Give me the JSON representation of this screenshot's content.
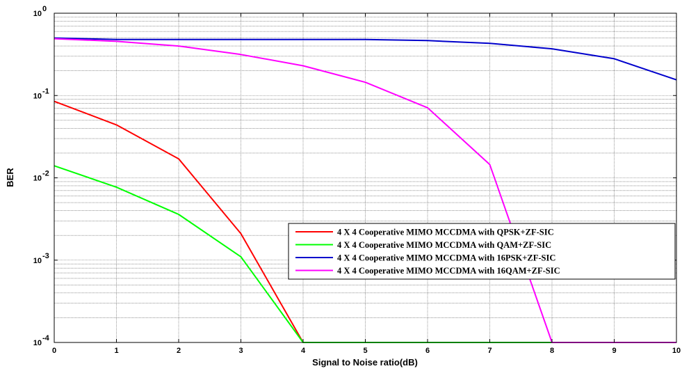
{
  "chart_data": {
    "type": "line",
    "title": "",
    "xlabel": "Signal to Noise ratio(dB)",
    "ylabel": "BER",
    "xlim": [
      0,
      10
    ],
    "ylim": [
      0.0001,
      1
    ],
    "yscale": "log",
    "grid": true,
    "legend_position": "lower-right",
    "x_ticks": [
      "0",
      "1",
      "2",
      "3",
      "4",
      "5",
      "6",
      "7",
      "8",
      "9",
      "10"
    ],
    "y_ticks": [
      {
        "base": "10",
        "exp": "-4",
        "value": 0.0001
      },
      {
        "base": "10",
        "exp": "-3",
        "value": 0.001
      },
      {
        "base": "10",
        "exp": "-2",
        "value": 0.01
      },
      {
        "base": "10",
        "exp": "-1",
        "value": 0.1
      },
      {
        "base": "10",
        "exp": "0",
        "value": 1
      }
    ],
    "x": [
      0,
      1,
      2,
      3,
      4,
      5,
      6,
      7,
      8,
      9,
      10
    ],
    "series": [
      {
        "name": "4 X 4 Cooperative  MIMO MCCDMA  with QPSK+ZF-SIC",
        "color": "#ff0000",
        "values": [
          0.085,
          0.044,
          0.017,
          0.0021,
          0.0001,
          0.0001,
          0.0001,
          0.0001,
          0.0001,
          0.0001,
          0.0001
        ]
      },
      {
        "name": "4 X 4 Cooperative  MIMO MCCDMA  with QAM+ZF-SIC",
        "color": "#00ff00",
        "values": [
          0.014,
          0.0077,
          0.0036,
          0.0011,
          0.0001,
          0.0001,
          0.0001,
          0.0001,
          0.0001,
          0.0001,
          0.0001
        ]
      },
      {
        "name": "4 X 4 Cooperative  MIMO MCCDMA  with 16PSK+ZF-SIC",
        "color": "#0000cc",
        "values": [
          0.5,
          0.48,
          0.48,
          0.48,
          0.48,
          0.48,
          0.465,
          0.43,
          0.37,
          0.28,
          0.155
        ]
      },
      {
        "name": "4 X 4 Cooperative  MIMO MCCDMA  with 16QAM+ZF-SIC",
        "color": "#ff00ff",
        "values": [
          0.49,
          0.455,
          0.4,
          0.315,
          0.23,
          0.145,
          0.071,
          0.0145,
          0.0001,
          0.0001,
          0.0001
        ]
      }
    ]
  }
}
